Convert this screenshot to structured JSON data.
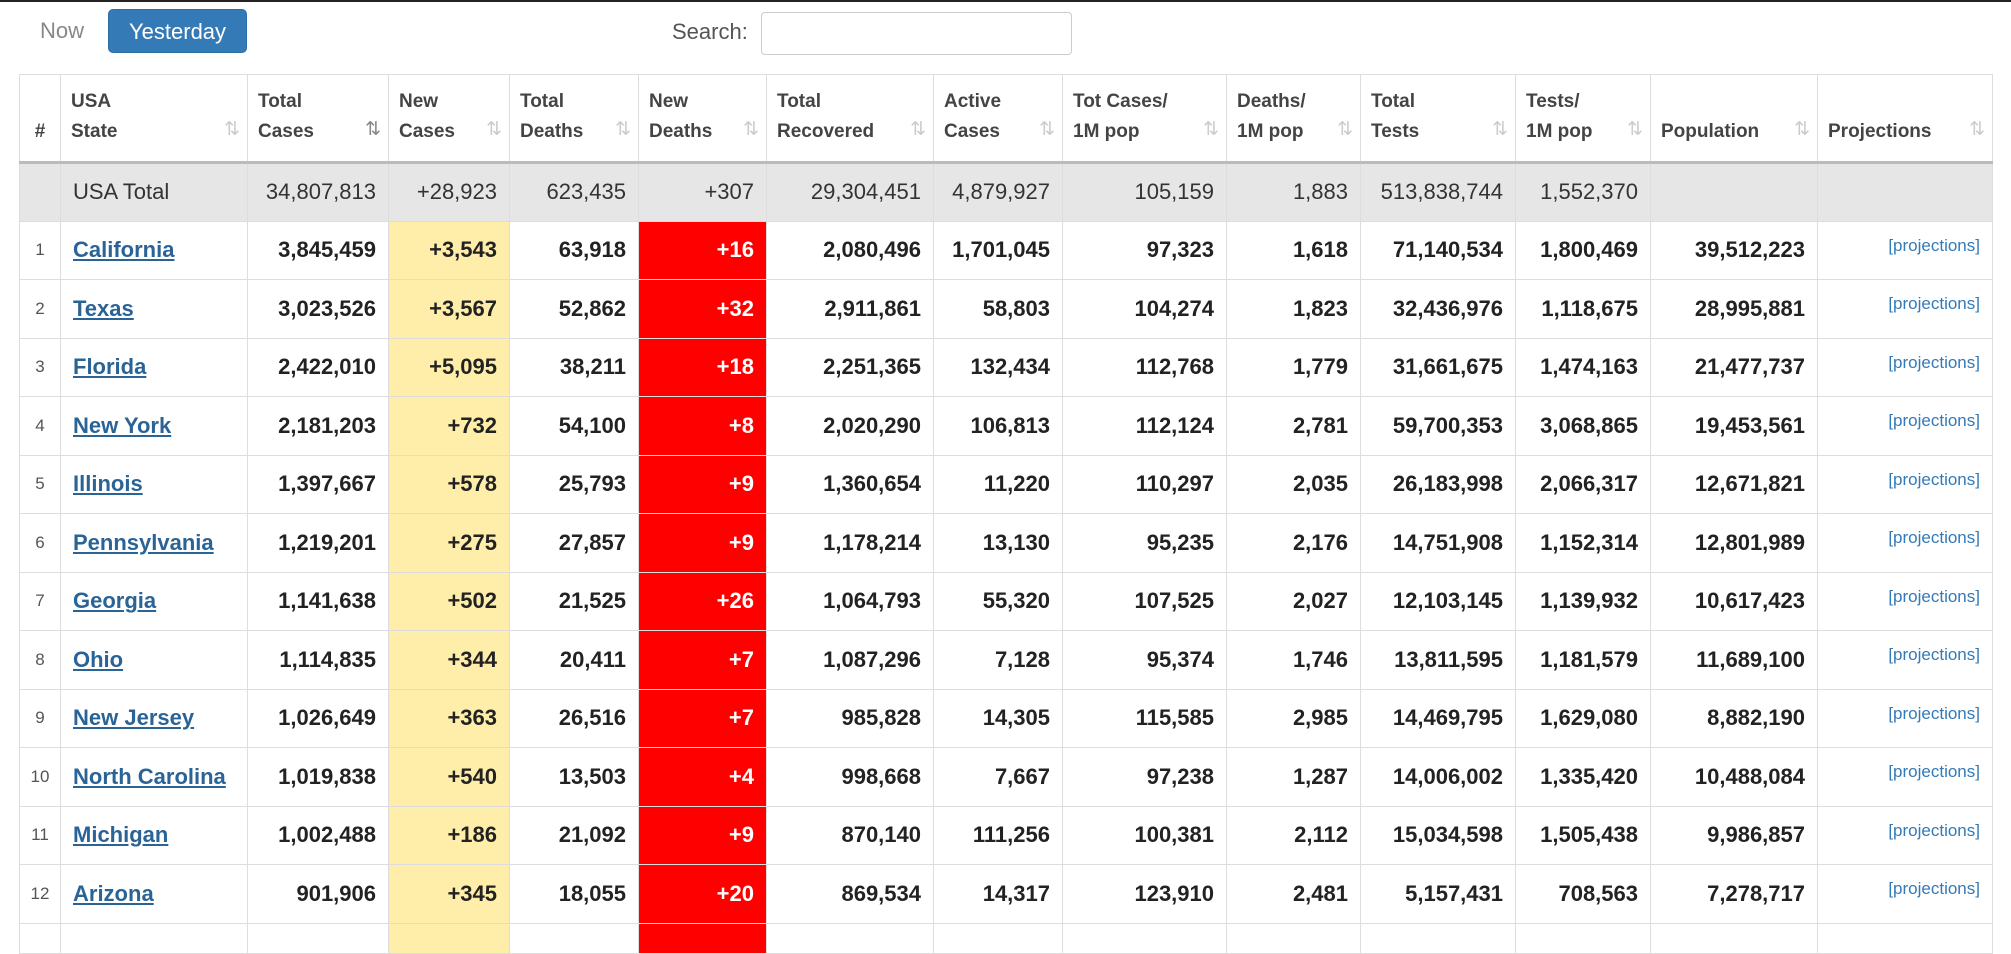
{
  "tabs": {
    "now": "Now",
    "yesterday": "Yesterday"
  },
  "search": {
    "label": "Search:",
    "value": ""
  },
  "sort_icon": "⇅",
  "headers": [
    {
      "line1": "",
      "line2": "#"
    },
    {
      "line1": "USA",
      "line2": "State"
    },
    {
      "line1": "Total",
      "line2": "Cases"
    },
    {
      "line1": "New",
      "line2": "Cases"
    },
    {
      "line1": "Total",
      "line2": "Deaths"
    },
    {
      "line1": "New",
      "line2": "Deaths"
    },
    {
      "line1": "Total",
      "line2": "Recovered"
    },
    {
      "line1": "Active",
      "line2": "Cases"
    },
    {
      "line1": "Tot Cases/",
      "line2": "1M pop"
    },
    {
      "line1": "Deaths/",
      "line2": "1M pop"
    },
    {
      "line1": "Total",
      "line2": "Tests"
    },
    {
      "line1": "Tests/",
      "line2": "1M pop"
    },
    {
      "line1": "",
      "line2": "Population"
    },
    {
      "line1": "",
      "line2": "Projections"
    }
  ],
  "total": {
    "label": "USA Total",
    "total_cases": "34,807,813",
    "new_cases": "+28,923",
    "total_deaths": "623,435",
    "new_deaths": "+307",
    "total_recovered": "29,304,451",
    "active_cases": "4,879,927",
    "cases_per_m": "105,159",
    "deaths_per_m": "1,883",
    "total_tests": "513,838,744",
    "tests_per_m": "1,552,370",
    "population": "",
    "projections": ""
  },
  "rows": [
    {
      "num": "1",
      "state": "California",
      "total_cases": "3,845,459",
      "new_cases": "+3,543",
      "total_deaths": "63,918",
      "new_deaths": "+16",
      "total_recovered": "2,080,496",
      "active_cases": "1,701,045",
      "cases_per_m": "97,323",
      "deaths_per_m": "1,618",
      "total_tests": "71,140,534",
      "tests_per_m": "1,800,469",
      "population": "39,512,223",
      "projections": "[projections]"
    },
    {
      "num": "2",
      "state": "Texas",
      "total_cases": "3,023,526",
      "new_cases": "+3,567",
      "total_deaths": "52,862",
      "new_deaths": "+32",
      "total_recovered": "2,911,861",
      "active_cases": "58,803",
      "cases_per_m": "104,274",
      "deaths_per_m": "1,823",
      "total_tests": "32,436,976",
      "tests_per_m": "1,118,675",
      "population": "28,995,881",
      "projections": "[projections]"
    },
    {
      "num": "3",
      "state": "Florida",
      "total_cases": "2,422,010",
      "new_cases": "+5,095",
      "total_deaths": "38,211",
      "new_deaths": "+18",
      "total_recovered": "2,251,365",
      "active_cases": "132,434",
      "cases_per_m": "112,768",
      "deaths_per_m": "1,779",
      "total_tests": "31,661,675",
      "tests_per_m": "1,474,163",
      "population": "21,477,737",
      "projections": "[projections]"
    },
    {
      "num": "4",
      "state": "New York",
      "total_cases": "2,181,203",
      "new_cases": "+732",
      "total_deaths": "54,100",
      "new_deaths": "+8",
      "total_recovered": "2,020,290",
      "active_cases": "106,813",
      "cases_per_m": "112,124",
      "deaths_per_m": "2,781",
      "total_tests": "59,700,353",
      "tests_per_m": "3,068,865",
      "population": "19,453,561",
      "projections": "[projections]"
    },
    {
      "num": "5",
      "state": "Illinois",
      "total_cases": "1,397,667",
      "new_cases": "+578",
      "total_deaths": "25,793",
      "new_deaths": "+9",
      "total_recovered": "1,360,654",
      "active_cases": "11,220",
      "cases_per_m": "110,297",
      "deaths_per_m": "2,035",
      "total_tests": "26,183,998",
      "tests_per_m": "2,066,317",
      "population": "12,671,821",
      "projections": "[projections]"
    },
    {
      "num": "6",
      "state": "Pennsylvania",
      "total_cases": "1,219,201",
      "new_cases": "+275",
      "total_deaths": "27,857",
      "new_deaths": "+9",
      "total_recovered": "1,178,214",
      "active_cases": "13,130",
      "cases_per_m": "95,235",
      "deaths_per_m": "2,176",
      "total_tests": "14,751,908",
      "tests_per_m": "1,152,314",
      "population": "12,801,989",
      "projections": "[projections]"
    },
    {
      "num": "7",
      "state": "Georgia",
      "total_cases": "1,141,638",
      "new_cases": "+502",
      "total_deaths": "21,525",
      "new_deaths": "+26",
      "total_recovered": "1,064,793",
      "active_cases": "55,320",
      "cases_per_m": "107,525",
      "deaths_per_m": "2,027",
      "total_tests": "12,103,145",
      "tests_per_m": "1,139,932",
      "population": "10,617,423",
      "projections": "[projections]"
    },
    {
      "num": "8",
      "state": "Ohio",
      "total_cases": "1,114,835",
      "new_cases": "+344",
      "total_deaths": "20,411",
      "new_deaths": "+7",
      "total_recovered": "1,087,296",
      "active_cases": "7,128",
      "cases_per_m": "95,374",
      "deaths_per_m": "1,746",
      "total_tests": "13,811,595",
      "tests_per_m": "1,181,579",
      "population": "11,689,100",
      "projections": "[projections]"
    },
    {
      "num": "9",
      "state": "New Jersey",
      "total_cases": "1,026,649",
      "new_cases": "+363",
      "total_deaths": "26,516",
      "new_deaths": "+7",
      "total_recovered": "985,828",
      "active_cases": "14,305",
      "cases_per_m": "115,585",
      "deaths_per_m": "2,985",
      "total_tests": "14,469,795",
      "tests_per_m": "1,629,080",
      "population": "8,882,190",
      "projections": "[projections]"
    },
    {
      "num": "10",
      "state": "North Carolina",
      "total_cases": "1,019,838",
      "new_cases": "+540",
      "total_deaths": "13,503",
      "new_deaths": "+4",
      "total_recovered": "998,668",
      "active_cases": "7,667",
      "cases_per_m": "97,238",
      "deaths_per_m": "1,287",
      "total_tests": "14,006,002",
      "tests_per_m": "1,335,420",
      "population": "10,488,084",
      "projections": "[projections]"
    },
    {
      "num": "11",
      "state": "Michigan",
      "total_cases": "1,002,488",
      "new_cases": "+186",
      "total_deaths": "21,092",
      "new_deaths": "+9",
      "total_recovered": "870,140",
      "active_cases": "111,256",
      "cases_per_m": "100,381",
      "deaths_per_m": "2,112",
      "total_tests": "15,034,598",
      "tests_per_m": "1,505,438",
      "population": "9,986,857",
      "projections": "[projections]"
    },
    {
      "num": "12",
      "state": "Arizona",
      "total_cases": "901,906",
      "new_cases": "+345",
      "total_deaths": "18,055",
      "new_deaths": "+20",
      "total_recovered": "869,534",
      "active_cases": "14,317",
      "cases_per_m": "123,910",
      "deaths_per_m": "2,481",
      "total_tests": "5,157,431",
      "tests_per_m": "708,563",
      "population": "7,278,717",
      "projections": "[projections]"
    }
  ],
  "colors": {
    "new_cases_bg": "#ffeeaa",
    "new_deaths_bg": "#ff0000",
    "active_tab": "#337ab7",
    "link": "#2a6496"
  }
}
